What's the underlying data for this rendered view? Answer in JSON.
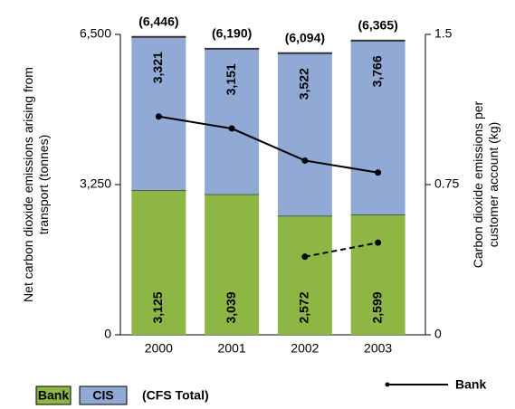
{
  "chart_data": {
    "type": "bar",
    "stacked": true,
    "categories": [
      "2000",
      "2001",
      "2002",
      "2003"
    ],
    "series": [
      {
        "name": "Bank",
        "color": "#8db645",
        "values": [
          3125,
          3039,
          2572,
          2599
        ],
        "value_labels": [
          "3,125",
          "3,039",
          "2,572",
          "2,599"
        ]
      },
      {
        "name": "CIS",
        "color": "#91a9d5",
        "values": [
          3321,
          3151,
          3522,
          3766
        ],
        "value_labels": [
          "3,321",
          "3,151",
          "3,522",
          "3,766"
        ]
      }
    ],
    "totals": {
      "name": "(CFS Total)",
      "values": [
        6446,
        6190,
        6094,
        6365
      ],
      "value_labels": [
        "(6,446)",
        "(6,190)",
        "(6,094)",
        "(6,365)"
      ]
    },
    "line_series": [
      {
        "name": "Bank",
        "color": "#000000",
        "axis": "y2",
        "style": "solid",
        "values": [
          1.09,
          1.03,
          0.87,
          0.81
        ]
      },
      {
        "color": "#000000",
        "axis": "y2",
        "style": "dashed",
        "values": [
          null,
          null,
          0.39,
          0.46
        ]
      }
    ],
    "ylabel": [
      "Net carbon dioxide emissions arising from",
      "transport (tonnes)"
    ],
    "y2label": [
      "Carbon dioxide emissions per",
      "customer account (kg)"
    ],
    "ylim": [
      0,
      6500
    ],
    "yticks": [
      0,
      {
        "value": 3250,
        "label": "3,250"
      },
      {
        "value": 6500,
        "label": "6,500"
      }
    ],
    "y2lim": [
      0,
      1.5
    ],
    "y2ticks": [
      0,
      0.75,
      1.5
    ]
  }
}
